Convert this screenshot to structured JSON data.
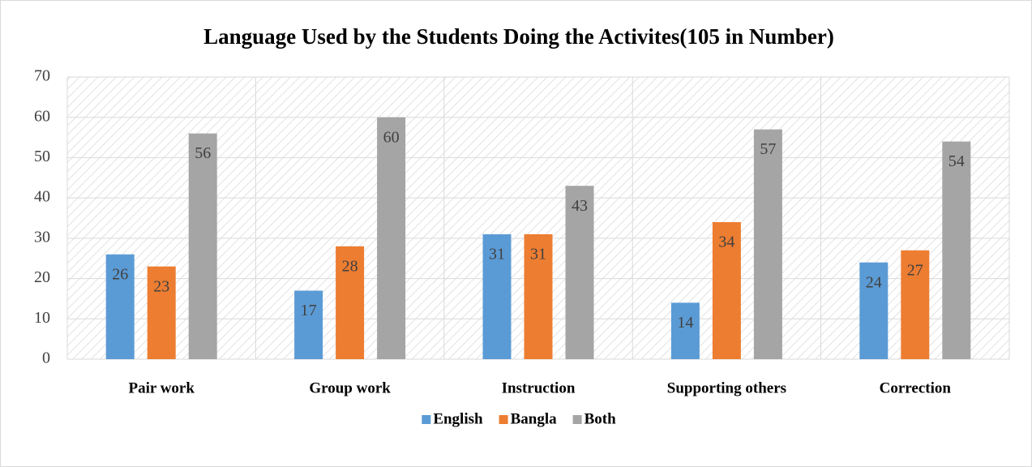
{
  "chart_data": {
    "type": "bar",
    "title": "Language Used by the Students Doing the Activites(105 in Number)",
    "categories": [
      "Pair work",
      "Group work",
      "Instruction",
      "Supporting others",
      "Correction"
    ],
    "series": [
      {
        "name": "English",
        "color": "#5b9bd5",
        "values": [
          26,
          17,
          31,
          14,
          24
        ]
      },
      {
        "name": "Bangla",
        "color": "#ed7d31",
        "values": [
          23,
          28,
          31,
          34,
          27
        ]
      },
      {
        "name": "Both",
        "color": "#a5a5a5",
        "values": [
          56,
          60,
          43,
          57,
          54
        ]
      }
    ],
    "ylim": [
      0,
      70
    ],
    "yticks": [
      0,
      10,
      20,
      30,
      40,
      50,
      60,
      70
    ],
    "grid": true,
    "legend": "bottom"
  }
}
